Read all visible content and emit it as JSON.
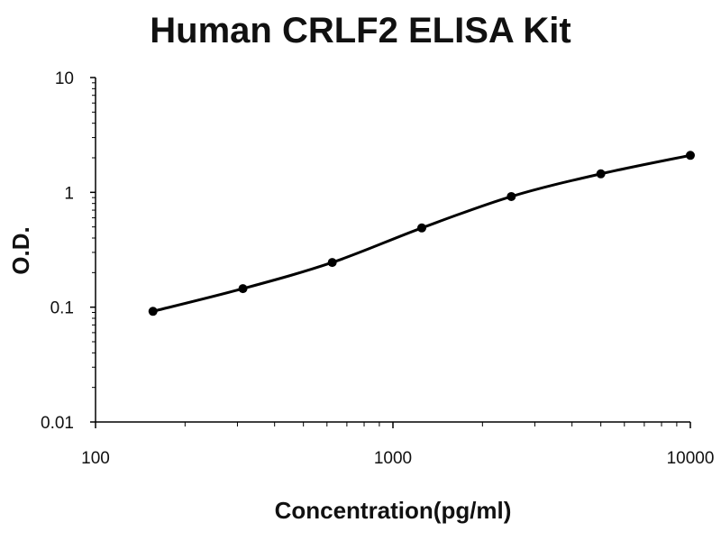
{
  "chart_data": {
    "type": "scatter",
    "title": "Human CRLF2 ELISA Kit",
    "xlabel": "Concentration(pg/ml)",
    "ylabel": "O.D.",
    "x_scale": "log",
    "y_scale": "log",
    "xlim": [
      100,
      10000
    ],
    "ylim": [
      0.01,
      10
    ],
    "x_ticks": [
      "100",
      "1000",
      "10000"
    ],
    "y_ticks": [
      "0.01",
      "0.1",
      "1",
      "10"
    ],
    "grid": false,
    "legend": "none",
    "series": [
      {
        "points": [
          {
            "x": 156,
            "y": 0.092
          },
          {
            "x": 313,
            "y": 0.145
          },
          {
            "x": 625,
            "y": 0.245
          },
          {
            "x": 1250,
            "y": 0.49
          },
          {
            "x": 2500,
            "y": 0.92
          },
          {
            "x": 5000,
            "y": 1.45
          },
          {
            "x": 10000,
            "y": 2.1
          }
        ],
        "fit_curve": true
      }
    ],
    "colors": {
      "line": "#000000",
      "marker": "#000000",
      "axis": "#000000",
      "text": "#111111"
    }
  }
}
